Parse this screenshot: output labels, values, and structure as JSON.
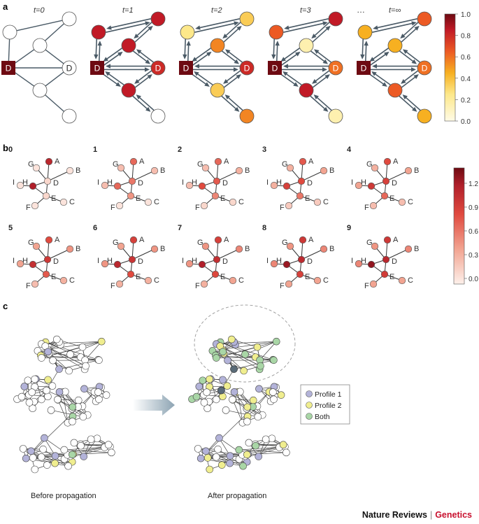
{
  "panels": {
    "a": {
      "label": "a",
      "time_labels": [
        "t=0",
        "t=1",
        "t=2",
        "t=3",
        "t=∞"
      ],
      "ellipsis": "…",
      "source_label": "D",
      "target_label": "D",
      "node_values": [
        [
          0,
          0,
          0,
          0,
          0,
          0
        ],
        [
          0.85,
          0.85,
          0.85,
          0.85,
          0,
          0
        ],
        [
          0.25,
          0.55,
          0.35,
          0.35,
          0.55,
          0.25
        ],
        [
          0.65,
          0.15,
          0.85,
          0.85,
          0.15,
          0.65
        ],
        [
          0.45,
          0.45,
          0.65,
          0.65,
          0.45,
          0.45
        ]
      ],
      "colorbar": {
        "ticks": [
          "1.0",
          "0.8",
          "0.6",
          "0.4",
          "0.2",
          "0.0"
        ]
      }
    },
    "b": {
      "label": "b",
      "step_labels": [
        "0",
        "1",
        "2",
        "3",
        "4",
        "5",
        "6",
        "7",
        "8",
        "9"
      ],
      "node_labels": [
        "A",
        "B",
        "C",
        "D",
        "E",
        "F",
        "G",
        "H",
        "I"
      ],
      "colorbar": {
        "ticks": [
          "1.2",
          "0.9",
          "0.6",
          "0.3",
          "0.0"
        ]
      }
    },
    "c": {
      "label": "c",
      "before_caption": "Before propagation",
      "after_caption": "After propagation",
      "legend": [
        {
          "label": "Profile 1",
          "color": "#b3b3d9"
        },
        {
          "label": "Profile 2",
          "color": "#f0ee8f"
        },
        {
          "label": "Both",
          "color": "#a9d6a6"
        }
      ]
    }
  },
  "footer": {
    "journal": "Nature Reviews",
    "separator": "|",
    "section": "Genetics"
  }
}
